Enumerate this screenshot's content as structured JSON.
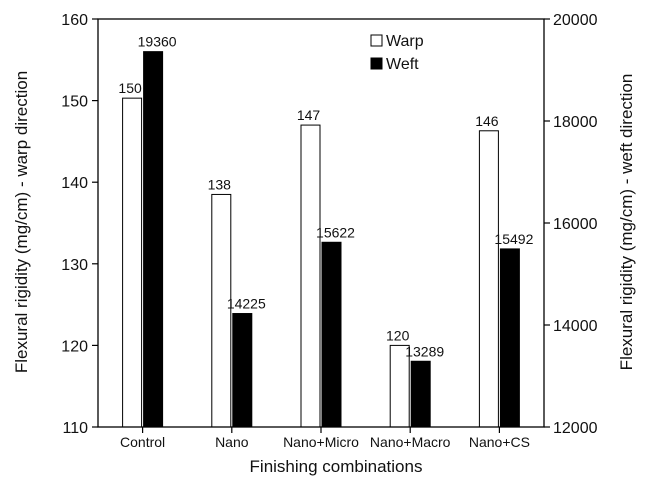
{
  "chart_data": {
    "type": "bar",
    "title": "",
    "xlabel": "Finishing combinations",
    "ylabel_left": "Flexural rigidity (mg/cm) - warp direction",
    "ylabel_right": "Flexural rigidity (mg/cm) - weft direction",
    "categories": [
      "Control",
      "Nano",
      "Nano+Micro",
      "Nano+Macro",
      "Nano+CS"
    ],
    "ylim_left": [
      110,
      160
    ],
    "yticks_left": [
      110,
      120,
      130,
      140,
      150,
      160
    ],
    "ylim_right": [
      12000,
      20000
    ],
    "yticks_right": [
      12000,
      14000,
      16000,
      18000,
      20000
    ],
    "legend_position": "top-right",
    "series": [
      {
        "name": "Warp",
        "axis": "left",
        "fill": "#ffffff",
        "values": [
          150.3,
          138.5,
          147.0,
          120.0,
          146.3
        ],
        "labels": [
          "150",
          "138",
          "147",
          "120",
          "146"
        ]
      },
      {
        "name": "Weft",
        "axis": "right",
        "fill": "#000000",
        "values": [
          19360,
          14225,
          15622,
          13289,
          15492
        ],
        "labels": [
          "19360",
          "14225",
          "15622",
          "13289",
          "15492"
        ]
      }
    ]
  }
}
